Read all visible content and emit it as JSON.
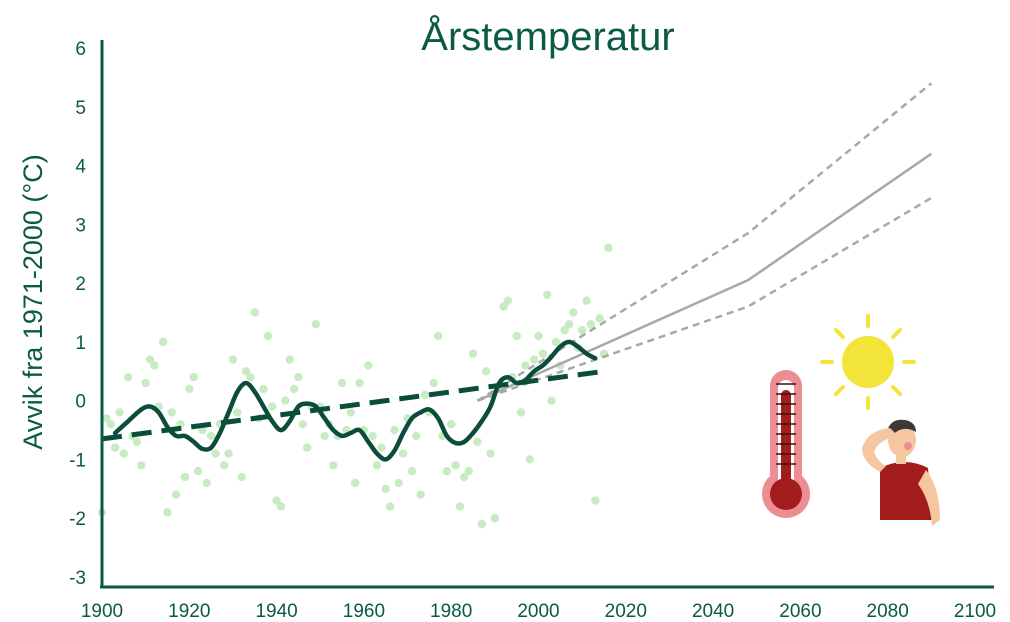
{
  "chart_data": {
    "type": "line",
    "title": "Årstemperatur",
    "xlabel": "",
    "ylabel": "Avvik fra 1971-2000 (°C)",
    "xlim": [
      1900,
      2100
    ],
    "ylim": [
      -3,
      6
    ],
    "x_ticks": [
      "1900",
      "1920",
      "1940",
      "1960",
      "1980",
      "2000",
      "2020",
      "2040",
      "2060",
      "2080",
      "2100"
    ],
    "y_ticks": [
      "-3",
      "-2",
      "-1",
      "0",
      "1",
      "2",
      "3",
      "4",
      "5",
      "6"
    ],
    "grid": false,
    "colors": {
      "axis": "#0b5a45",
      "smoothed": "#0b4d3b",
      "trend": "#0b4d3b",
      "scatter": "#c8ebc3",
      "projection": "#a8a8a8"
    },
    "series": [
      {
        "kind": "scatter",
        "points": [
          [
            1900,
            -1.9
          ],
          [
            1901,
            -0.3
          ],
          [
            1902,
            -0.4
          ],
          [
            1903,
            -0.8
          ],
          [
            1904,
            -0.2
          ],
          [
            1905,
            -0.9
          ],
          [
            1906,
            0.4
          ],
          [
            1907,
            -0.6
          ],
          [
            1908,
            -0.7
          ],
          [
            1909,
            -1.1
          ],
          [
            1910,
            0.3
          ],
          [
            1911,
            0.7
          ],
          [
            1912,
            0.6
          ],
          [
            1913,
            -0.1
          ],
          [
            1914,
            1.0
          ],
          [
            1915,
            -1.9
          ],
          [
            1916,
            -0.2
          ],
          [
            1917,
            -1.6
          ],
          [
            1918,
            -0.4
          ],
          [
            1919,
            -1.3
          ],
          [
            1920,
            0.2
          ],
          [
            1921,
            0.4
          ],
          [
            1922,
            -1.2
          ],
          [
            1923,
            -0.5
          ],
          [
            1924,
            -1.4
          ],
          [
            1925,
            -0.6
          ],
          [
            1926,
            -0.9
          ],
          [
            1927,
            -0.4
          ],
          [
            1928,
            -1.1
          ],
          [
            1929,
            -0.9
          ],
          [
            1930,
            0.7
          ],
          [
            1931,
            -0.2
          ],
          [
            1932,
            -1.3
          ],
          [
            1933,
            0.5
          ],
          [
            1934,
            0.4
          ],
          [
            1935,
            1.5
          ],
          [
            1936,
            -0.3
          ],
          [
            1937,
            0.2
          ],
          [
            1938,
            1.1
          ],
          [
            1939,
            -0.1
          ],
          [
            1940,
            -1.7
          ],
          [
            1941,
            -1.8
          ],
          [
            1942,
            0.0
          ],
          [
            1943,
            0.7
          ],
          [
            1944,
            0.2
          ],
          [
            1945,
            0.4
          ],
          [
            1946,
            -0.4
          ],
          [
            1947,
            -0.8
          ],
          [
            1948,
            -0.1
          ],
          [
            1949,
            1.3
          ],
          [
            1950,
            -0.1
          ],
          [
            1951,
            -0.6
          ],
          [
            1952,
            -0.4
          ],
          [
            1953,
            -1.1
          ],
          [
            1954,
            -0.6
          ],
          [
            1955,
            0.3
          ],
          [
            1956,
            -0.5
          ],
          [
            1957,
            -0.2
          ],
          [
            1958,
            -1.4
          ],
          [
            1959,
            0.3
          ],
          [
            1960,
            -0.5
          ],
          [
            1961,
            0.6
          ],
          [
            1962,
            -0.6
          ],
          [
            1963,
            -1.1
          ],
          [
            1964,
            -0.8
          ],
          [
            1965,
            -1.5
          ],
          [
            1966,
            -1.8
          ],
          [
            1967,
            -0.5
          ],
          [
            1968,
            -1.4
          ],
          [
            1969,
            -0.9
          ],
          [
            1970,
            -0.3
          ],
          [
            1971,
            -1.2
          ],
          [
            1972,
            -0.6
          ],
          [
            1973,
            -1.6
          ],
          [
            1974,
            0.1
          ],
          [
            1975,
            -0.2
          ],
          [
            1976,
            0.3
          ],
          [
            1977,
            1.1
          ],
          [
            1978,
            -0.6
          ],
          [
            1979,
            -1.2
          ],
          [
            1980,
            -0.4
          ],
          [
            1981,
            -1.1
          ],
          [
            1982,
            -1.8
          ],
          [
            1983,
            -1.3
          ],
          [
            1984,
            -1.2
          ],
          [
            1985,
            0.8
          ],
          [
            1986,
            -0.7
          ],
          [
            1987,
            -2.1
          ],
          [
            1988,
            0.5
          ],
          [
            1989,
            -0.9
          ],
          [
            1990,
            -2.0
          ],
          [
            1991,
            0.2
          ],
          [
            1992,
            1.6
          ],
          [
            1993,
            1.7
          ],
          [
            1994,
            0.4
          ],
          [
            1995,
            1.1
          ],
          [
            1996,
            -0.2
          ],
          [
            1997,
            0.6
          ],
          [
            1998,
            -1.0
          ],
          [
            1999,
            0.7
          ],
          [
            2000,
            1.1
          ],
          [
            2001,
            0.8
          ],
          [
            2002,
            1.8
          ],
          [
            2003,
            0.0
          ],
          [
            2004,
            1.0
          ],
          [
            2005,
            0.6
          ],
          [
            2006,
            1.2
          ],
          [
            2007,
            1.3
          ],
          [
            2008,
            1.5
          ],
          [
            2009,
            0.9
          ],
          [
            2010,
            1.2
          ],
          [
            2011,
            1.7
          ],
          [
            2012,
            1.3
          ],
          [
            2013,
            -1.7
          ],
          [
            2014,
            1.4
          ],
          [
            2015,
            0.8
          ],
          [
            2016,
            2.6
          ]
        ]
      },
      {
        "kind": "smoothed",
        "x": [
          1903,
          1906,
          1909,
          1911,
          1913,
          1915,
          1917,
          1919,
          1921,
          1923,
          1925,
          1927,
          1929,
          1931,
          1933,
          1935,
          1937,
          1939,
          1941,
          1943,
          1945,
          1947,
          1949,
          1951,
          1953,
          1955,
          1957,
          1959,
          1961,
          1963,
          1965,
          1967,
          1969,
          1971,
          1973,
          1975,
          1977,
          1979,
          1981,
          1983,
          1985,
          1987,
          1989,
          1991,
          1993,
          1995,
          1997,
          1999,
          2001,
          2003,
          2005,
          2007,
          2009,
          2011,
          2013
        ],
        "y": [
          -0.55,
          -0.35,
          -0.15,
          -0.1,
          -0.2,
          -0.45,
          -0.6,
          -0.6,
          -0.7,
          -0.82,
          -0.8,
          -0.55,
          -0.2,
          0.15,
          0.3,
          0.15,
          -0.1,
          -0.35,
          -0.5,
          -0.35,
          -0.1,
          -0.05,
          -0.1,
          -0.3,
          -0.5,
          -0.6,
          -0.55,
          -0.5,
          -0.7,
          -0.9,
          -1.0,
          -0.85,
          -0.55,
          -0.3,
          -0.2,
          -0.15,
          -0.3,
          -0.6,
          -0.72,
          -0.7,
          -0.55,
          -0.35,
          -0.1,
          0.3,
          0.4,
          0.3,
          0.35,
          0.5,
          0.6,
          0.75,
          0.92,
          1.0,
          0.92,
          0.8,
          0.72
        ]
      },
      {
        "kind": "trend",
        "x": [
          1900,
          2015
        ],
        "y": [
          -0.65,
          0.5
        ]
      },
      {
        "kind": "projection",
        "x": [
          1986,
          2048,
          2090
        ],
        "y": [
          0.0,
          2.05,
          4.2
        ]
      },
      {
        "kind": "projection_high",
        "x": [
          1986,
          2048,
          2090
        ],
        "y": [
          0.0,
          2.85,
          5.4
        ]
      },
      {
        "kind": "projection_low",
        "x": [
          1986,
          2048,
          2090
        ],
        "y": [
          0.0,
          1.6,
          3.45
        ]
      }
    ],
    "icons": [
      "thermometer-icon",
      "sun-icon",
      "hot-person-icon"
    ]
  }
}
